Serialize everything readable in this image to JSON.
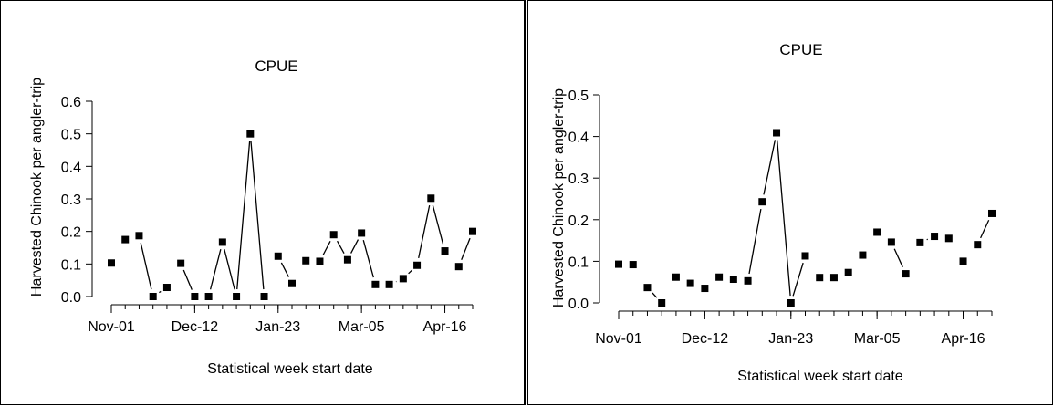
{
  "chart_data": [
    {
      "type": "line",
      "title": "CPUE",
      "xlabel": "Statistical week start date",
      "ylabel": "Harvested Chinook per angler-trip",
      "ylim": [
        0,
        0.6
      ],
      "yticks": [
        "0.0",
        "0.1",
        "0.2",
        "0.3",
        "0.4",
        "0.5",
        "0.6"
      ],
      "xticks": [
        {
          "week": 1,
          "label": "Nov-01"
        },
        {
          "week": 7,
          "label": "Dec-12"
        },
        {
          "week": 13,
          "label": "Jan-23"
        },
        {
          "week": 19,
          "label": "Mar-05"
        },
        {
          "week": 25,
          "label": "Apr-16"
        }
      ],
      "x": [
        1,
        2,
        3,
        4,
        5,
        6,
        7,
        8,
        9,
        10,
        11,
        12,
        13,
        14,
        15,
        16,
        17,
        18,
        19,
        20,
        21,
        22,
        23,
        24,
        25,
        26,
        27
      ],
      "values": [
        0.103,
        0.175,
        0.187,
        0.0,
        0.028,
        0.102,
        0.0,
        0.0,
        0.167,
        0.0,
        0.5,
        0.0,
        0.124,
        0.04,
        0.11,
        0.108,
        0.19,
        0.113,
        0.195,
        0.037,
        0.037,
        0.055,
        0.096,
        0.302,
        0.14,
        0.092,
        0.2
      ],
      "segments": [
        [
          2,
          3
        ],
        [
          3,
          4
        ],
        [
          4,
          5
        ],
        [
          6,
          7
        ],
        [
          8,
          9
        ],
        [
          9,
          10
        ],
        [
          10,
          11
        ],
        [
          11,
          12
        ],
        [
          13,
          14
        ],
        [
          16,
          17
        ],
        [
          17,
          18
        ],
        [
          18,
          19
        ],
        [
          19,
          20
        ],
        [
          21,
          22
        ],
        [
          22,
          23
        ],
        [
          23,
          24
        ],
        [
          24,
          25
        ],
        [
          26,
          27
        ]
      ]
    },
    {
      "type": "line",
      "title": "CPUE",
      "xlabel": "Statistical week start date",
      "ylabel": "Harvested Chinook per angler-trip",
      "ylim": [
        0,
        0.5
      ],
      "yticks": [
        "0.0",
        "0.1",
        "0.2",
        "0.3",
        "0.4",
        "0.5"
      ],
      "xticks": [
        {
          "week": 1,
          "label": "Nov-01"
        },
        {
          "week": 7,
          "label": "Dec-12"
        },
        {
          "week": 13,
          "label": "Jan-23"
        },
        {
          "week": 19,
          "label": "Mar-05"
        },
        {
          "week": 25,
          "label": "Apr-16"
        }
      ],
      "x": [
        1,
        2,
        3,
        4,
        5,
        6,
        7,
        8,
        9,
        10,
        11,
        12,
        13,
        14,
        15,
        16,
        17,
        18,
        19,
        20,
        21,
        22,
        23,
        24,
        25,
        26,
        27
      ],
      "values": [
        0.093,
        0.092,
        0.037,
        0.0,
        0.062,
        0.047,
        0.035,
        0.062,
        0.057,
        0.053,
        0.243,
        0.409,
        0.0,
        0.113,
        0.061,
        0.061,
        0.073,
        0.115,
        0.17,
        0.146,
        0.07,
        0.145,
        0.16,
        0.155,
        0.1,
        0.14,
        0.215
      ],
      "segments": [
        [
          3,
          4
        ],
        [
          10,
          11
        ],
        [
          11,
          12
        ],
        [
          12,
          13
        ],
        [
          13,
          14
        ],
        [
          20,
          21
        ],
        [
          22,
          23
        ],
        [
          26,
          27
        ]
      ]
    }
  ]
}
